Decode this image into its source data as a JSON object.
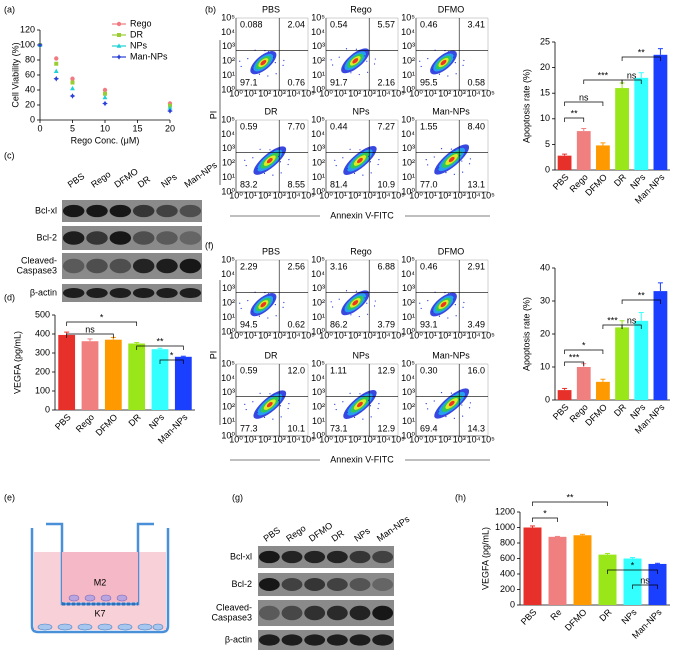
{
  "panel_labels": [
    "(a)",
    "(b)",
    "(c)",
    "(d)",
    "(e)",
    "(f)",
    "(g)",
    "(h)"
  ],
  "chart_data": [
    {
      "type": "line",
      "xlabel": "Rego Conc. (μM)",
      "ylabel": "Cell Viability (%)",
      "x": [
        0,
        2.5,
        5,
        10,
        20
      ],
      "xlim": [
        0,
        20
      ],
      "xticks": [
        0,
        5,
        10,
        15,
        20
      ],
      "ylim": [
        0,
        120
      ],
      "yticks": [
        0,
        20,
        40,
        60,
        80,
        100,
        120
      ],
      "series": [
        {
          "name": "Rego",
          "color": "#f07c82",
          "values": [
            100,
            82,
            55,
            40,
            22
          ]
        },
        {
          "name": "DR",
          "color": "#9acd32",
          "values": [
            100,
            75,
            50,
            35,
            19
          ]
        },
        {
          "name": "NPs",
          "color": "#1fd1d6",
          "values": [
            100,
            65,
            42,
            30,
            16
          ]
        },
        {
          "name": "Man-NPs",
          "color": "#2a3fd6",
          "values": [
            100,
            55,
            32,
            22,
            12
          ]
        }
      ]
    },
    {
      "type": "bar",
      "ylabel": "Apoptosis rate (%)",
      "categories": [
        "PBS",
        "Rego",
        "DFMO",
        "DR",
        "NPs",
        "Man-NPs"
      ],
      "values": [
        2.8,
        7.6,
        4.8,
        16,
        18,
        22.5
      ],
      "errors": [
        0.3,
        0.5,
        0.5,
        1,
        1,
        1.2
      ],
      "colors": [
        "#e8302a",
        "#f08080",
        "#ff9900",
        "#99e619",
        "#33ffff",
        "#1a3fff"
      ],
      "ylim": [
        0,
        25
      ],
      "yticks": [
        0,
        5,
        10,
        15,
        20,
        25
      ],
      "annotations": [
        "**",
        "ns",
        "***",
        "ns",
        "**"
      ]
    },
    {
      "type": "bar",
      "ylabel": "VEGFA (pg/mL)",
      "categories": [
        "PBS",
        "Rego",
        "DFMO",
        "DR",
        "NPs",
        "Man-NPs"
      ],
      "values": [
        395,
        362,
        370,
        350,
        320,
        280
      ],
      "errors": [
        15,
        12,
        12,
        5,
        5,
        3
      ],
      "colors": [
        "#e8302a",
        "#f08080",
        "#ff9900",
        "#99e619",
        "#33ffff",
        "#1a3fff"
      ],
      "ylim": [
        0,
        500
      ],
      "yticks": [
        0,
        100,
        200,
        300,
        400,
        500
      ],
      "annotations": [
        "*",
        "ns",
        "**",
        "*"
      ]
    },
    {
      "type": "bar",
      "ylabel": "Apoptosis rate (%)",
      "categories": [
        "PBS",
        "Rego",
        "DFMO",
        "DR",
        "NPs",
        "Man-NPs"
      ],
      "values": [
        3,
        10,
        5.5,
        22,
        24,
        33
      ],
      "errors": [
        0.5,
        1,
        0.8,
        2,
        2.5,
        2.5
      ],
      "colors": [
        "#e8302a",
        "#f08080",
        "#ff9900",
        "#99e619",
        "#33ffff",
        "#1a3fff"
      ],
      "ylim": [
        0,
        40
      ],
      "yticks": [
        0,
        10,
        20,
        30,
        40
      ],
      "annotations": [
        "***",
        "*",
        "***",
        "ns",
        "**"
      ]
    },
    {
      "type": "bar",
      "ylabel": "VEGFA (pg/mL)",
      "categories": [
        "PBS",
        "Re",
        "DFMO",
        "DR",
        "NPs",
        "Man-NPs"
      ],
      "values": [
        1000,
        880,
        900,
        650,
        600,
        530
      ],
      "errors": [
        20,
        5,
        12,
        15,
        12,
        8
      ],
      "colors": [
        "#e8302a",
        "#f08080",
        "#ff9900",
        "#99e619",
        "#33ffff",
        "#1a3fff"
      ],
      "ylim": [
        0,
        1200
      ],
      "yticks": [
        0,
        200,
        400,
        600,
        800,
        1000,
        1200
      ],
      "annotations": [
        "**",
        "*",
        "*",
        "ns"
      ]
    }
  ],
  "flow_ticks": [
    "10⁰",
    "10¹",
    "10²",
    "10³",
    "10⁴",
    "10⁵"
  ],
  "flow": [
    {
      "xlabel": "Annexin V-FITC",
      "ylabel": "PI",
      "plots": [
        {
          "title": "PBS",
          "quadrants": [
            "0.088",
            "2.04",
            "97.1",
            "0.76"
          ]
        },
        {
          "title": "Rego",
          "quadrants": [
            "0.54",
            "5.57",
            "91.7",
            "2.16"
          ]
        },
        {
          "title": "DFMO",
          "quadrants": [
            "0.46",
            "3.41",
            "95.5",
            "0.58"
          ]
        },
        {
          "title": "DR",
          "quadrants": [
            "0.59",
            "7.70",
            "83.2",
            "8.55"
          ]
        },
        {
          "title": "NPs",
          "quadrants": [
            "0.44",
            "7.27",
            "81.4",
            "10.9"
          ]
        },
        {
          "title": "Man-NPs",
          "quadrants": [
            "1.55",
            "8.40",
            "77.0",
            "13.1"
          ]
        }
      ]
    },
    {
      "xlabel": "Annexin V-FITC",
      "ylabel": "PI",
      "plots": [
        {
          "title": "PBS",
          "quadrants": [
            "2.29",
            "2.56",
            "94.5",
            "0.62"
          ]
        },
        {
          "title": "Rego",
          "quadrants": [
            "3.16",
            "6.88",
            "86.2",
            "3.79"
          ]
        },
        {
          "title": "DFMO",
          "quadrants": [
            "0.46",
            "2.91",
            "93.1",
            "3.49"
          ]
        },
        {
          "title": "DR",
          "quadrants": [
            "0.59",
            "12.0",
            "77.3",
            "10.1"
          ]
        },
        {
          "title": "NPs",
          "quadrants": [
            "1.11",
            "12.9",
            "73.1",
            "12.9"
          ]
        },
        {
          "title": "Man-NPs",
          "quadrants": [
            "0.30",
            "16.0",
            "69.4",
            "14.3"
          ]
        }
      ]
    }
  ],
  "blots": [
    {
      "lanes": [
        "PBS",
        "Rego",
        "DFMO",
        "DR",
        "NPs",
        "Man-NPs"
      ],
      "rows": [
        [
          "Bcl-xl"
        ],
        [
          "Bcl-2"
        ],
        [
          "Cleaved-",
          "Caspase3"
        ],
        [
          "β-actin"
        ]
      ]
    },
    {
      "lanes": [
        "PBS",
        "Rego",
        "DFMO",
        "DR",
        "NPs",
        "Man-NPs"
      ],
      "rows": [
        [
          "Bcl-xl"
        ],
        [
          "Bcl-2"
        ],
        [
          "Cleaved-",
          "Caspase3"
        ],
        [
          "β-actin"
        ]
      ]
    }
  ],
  "diagram": {
    "upper": "M2",
    "lower": "K7"
  }
}
